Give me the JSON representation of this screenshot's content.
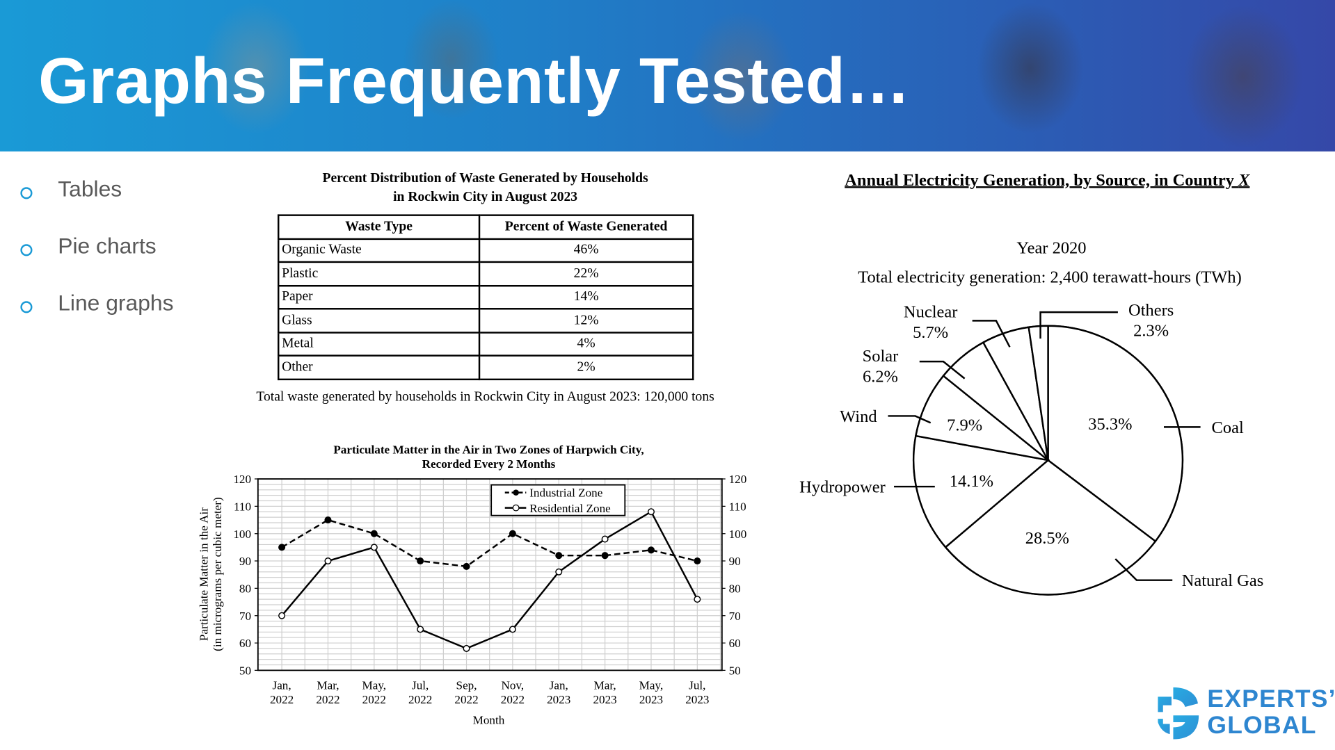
{
  "header": {
    "title": "Graphs Frequently Tested…"
  },
  "bullets": [
    "Tables",
    "Pie charts",
    "Line graphs"
  ],
  "table": {
    "title_line1": "Percent Distribution of Waste Generated by Households",
    "title_line2": "in Rockwin City in August 2023",
    "columns": [
      "Waste Type",
      "Percent of Waste Generated"
    ],
    "rows": [
      [
        "Organic Waste",
        "46%"
      ],
      [
        "Plastic",
        "22%"
      ],
      [
        "Paper",
        "14%"
      ],
      [
        "Glass",
        "12%"
      ],
      [
        "Metal",
        "4%"
      ],
      [
        "Other",
        "2%"
      ]
    ],
    "footnote": "Total waste generated by households in Rockwin City in August 2023: 120,000 tons"
  },
  "chart_data": [
    {
      "type": "line",
      "title": "Particulate Matter in the Air in Two Zones of Harpwich City, Recorded Every 2 Months",
      "title_line1": "Particulate Matter in the Air in Two Zones of Harpwich City,",
      "title_line2": "Recorded Every 2 Months",
      "xlabel": "Month",
      "ylabel_line1": "Particulate Matter in the Air",
      "ylabel_line2": "(in micrograms per cubic meter)",
      "categories": [
        [
          "Jan,",
          "2022"
        ],
        [
          "Mar,",
          "2022"
        ],
        [
          "May,",
          "2022"
        ],
        [
          "Jul,",
          "2022"
        ],
        [
          "Sep,",
          "2022"
        ],
        [
          "Nov,",
          "2022"
        ],
        [
          "Jan,",
          "2023"
        ],
        [
          "Mar,",
          "2023"
        ],
        [
          "May,",
          "2023"
        ],
        [
          "Jul,",
          "2023"
        ]
      ],
      "ylim": [
        50,
        120
      ],
      "yticks": [
        50,
        60,
        70,
        80,
        90,
        100,
        110,
        120
      ],
      "grid": true,
      "legend_position": "top-right",
      "series": [
        {
          "name": "Industrial Zone",
          "style": "dashed, filled markers",
          "values": [
            95,
            105,
            100,
            90,
            88,
            100,
            92,
            92,
            94,
            90
          ]
        },
        {
          "name": "Residential Zone",
          "style": "solid, hollow markers",
          "values": [
            70,
            90,
            95,
            65,
            58,
            65,
            86,
            98,
            108,
            76
          ]
        }
      ]
    },
    {
      "type": "pie",
      "title": "Annual Electricity Generation, by Source, in Country X",
      "title_main": "Annual Electricity Generation, by Source, in Country ",
      "title_italic": "X",
      "subtitle": "Year 2020",
      "total_label": "Total electricity generation: 2,400 terawatt-hours (TWh)",
      "slices": [
        {
          "label": "Coal",
          "value": 35.3,
          "text": "35.3%"
        },
        {
          "label": "Natural Gas",
          "value": 28.5,
          "text": "28.5%"
        },
        {
          "label": "Hydropower",
          "value": 14.1,
          "text": "14.1%"
        },
        {
          "label": "Wind",
          "value": 7.9,
          "text": "7.9%"
        },
        {
          "label": "Solar",
          "value": 6.2,
          "text": "6.2%"
        },
        {
          "label": "Nuclear",
          "value": 5.7,
          "text": "5.7%"
        },
        {
          "label": "Others",
          "value": 2.3,
          "text": "2.3%"
        }
      ]
    }
  ],
  "logo": {
    "line1": "EXPERTS’",
    "line2": "GLOBAL",
    "colors": [
      "#29abe2",
      "#3a5fb0"
    ]
  }
}
